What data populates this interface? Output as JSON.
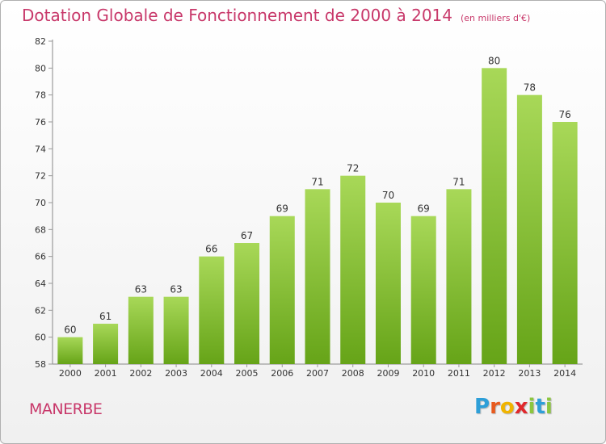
{
  "header": {
    "title": "Dotation Globale de Fonctionnement de 2000 à 2014",
    "unit": "(en milliers d'€)"
  },
  "footer": {
    "commune": "MANERBE",
    "brand_letters": [
      "P",
      "r",
      "o",
      "x",
      "i",
      "t",
      "i"
    ]
  },
  "colors": {
    "title": "#c8386a",
    "bar_light": "#a8d858",
    "bar_dark": "#66a418",
    "axis": "#888888",
    "grid_tick": "#999999",
    "brand": [
      "#2e9fd8",
      "#e85a1e",
      "#f0b400",
      "#e0282c",
      "#8cc63f",
      "#2e9fd8",
      "#8cc63f"
    ]
  },
  "chart_data": {
    "type": "bar",
    "categories": [
      "2000",
      "2001",
      "2002",
      "2003",
      "2004",
      "2005",
      "2006",
      "2007",
      "2008",
      "2009",
      "2010",
      "2011",
      "2012",
      "2013",
      "2014"
    ],
    "values": [
      60,
      61,
      63,
      63,
      66,
      67,
      69,
      71,
      72,
      70,
      69,
      71,
      80,
      78,
      76
    ],
    "ylim": [
      58,
      82
    ],
    "yticks": [
      58,
      60,
      62,
      64,
      66,
      68,
      70,
      72,
      74,
      76,
      78,
      80,
      82
    ],
    "grid": false,
    "legend": "none",
    "data_labels": true
  }
}
